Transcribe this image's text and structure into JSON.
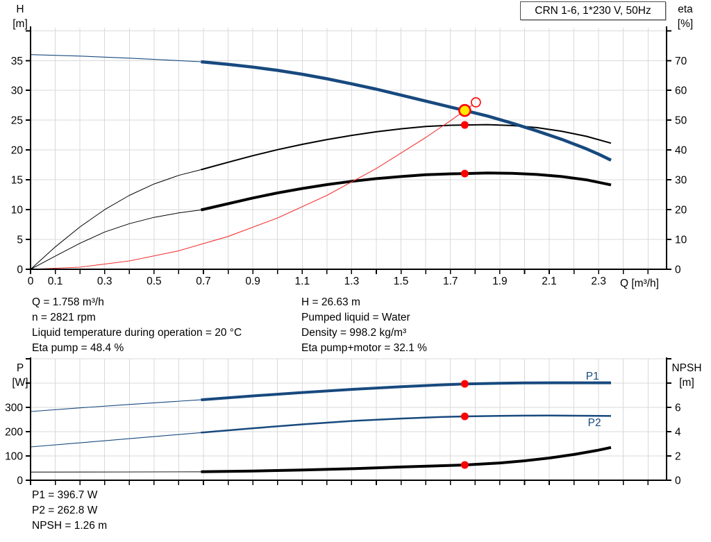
{
  "panel_title": "CRN 1-6, 1*230 V, 50Hz",
  "colors": {
    "curve_blue": "#17497E",
    "curve_black": "#000000",
    "system_red": "#F23434",
    "marker_red": "#FF0000",
    "marker_yellow": "#FFE800",
    "grid": "#D9D9D9",
    "axis": "#000000",
    "npsh_gray": "#4A4A4A",
    "label_blue": "#17497E"
  },
  "info_top_left": [
    "Q = 1.758 m³/h",
    "n = 2821 rpm",
    "Liquid temperature during operation = 20 °C",
    "Eta pump = 48.4 %"
  ],
  "info_top_right": [
    "H = 26.63 m",
    "Pumped liquid = Water",
    "Density = 998.2 kg/m³",
    "Eta pump+motor = 32.1 %"
  ],
  "info_bottom": [
    "P1 = 396.7 W",
    "P2 = 262.8 W",
    "NPSH = 1.26 m"
  ],
  "chart_data": [
    {
      "type": "line",
      "title": "CRN 1-6, 1*230 V, 50Hz",
      "x_axis": {
        "label": "Q [m³/h]",
        "min": 0,
        "max": 2.575,
        "tick_step": 0.1,
        "labeled_ticks": [
          0,
          0.1,
          0.3,
          0.5,
          0.7,
          0.9,
          1.1,
          1.3,
          1.5,
          1.7,
          1.9,
          2.1,
          2.3
        ]
      },
      "y_left": {
        "label_lines": [
          "H",
          "[m]"
        ],
        "min": 0,
        "max": 40.5,
        "tick_step": 5,
        "labeled_ticks": [
          0,
          5,
          10,
          15,
          20,
          25,
          30,
          35
        ]
      },
      "y_right": {
        "label_lines": [
          "eta",
          "[%]"
        ],
        "min": 0,
        "max": 81,
        "tick_step": 10,
        "labeled_ticks": [
          0,
          10,
          20,
          30,
          40,
          50,
          60,
          70
        ]
      },
      "series": [
        {
          "name": "qh-curve-extrapolated",
          "axis": "left",
          "color": "#17497E",
          "width": 1.1,
          "points": [
            [
              0,
              36.0
            ],
            [
              0.2,
              35.75
            ],
            [
              0.4,
              35.4
            ],
            [
              0.55,
              35.1
            ],
            [
              0.69,
              34.8
            ]
          ]
        },
        {
          "name": "eta-pump-extrapolated",
          "axis": "right",
          "color": "#000000",
          "width": 1,
          "points": [
            [
              0,
              0
            ],
            [
              0.1,
              7.5
            ],
            [
              0.2,
              14.2
            ],
            [
              0.3,
              20.0
            ],
            [
              0.4,
              24.8
            ],
            [
              0.5,
              28.6
            ],
            [
              0.6,
              31.5
            ],
            [
              0.69,
              33.4
            ]
          ]
        },
        {
          "name": "eta-pump-motor-extrapolated",
          "axis": "right",
          "color": "#000000",
          "width": 1,
          "points": [
            [
              0,
              0
            ],
            [
              0.1,
              4.4
            ],
            [
              0.2,
              8.7
            ],
            [
              0.3,
              12.5
            ],
            [
              0.4,
              15.3
            ],
            [
              0.5,
              17.4
            ],
            [
              0.6,
              18.9
            ],
            [
              0.69,
              19.9
            ]
          ]
        },
        {
          "name": "eta-pump-curve",
          "axis": "right",
          "color": "#000000",
          "width": 2,
          "points": [
            [
              0.69,
              33.4
            ],
            [
              0.8,
              35.9
            ],
            [
              0.9,
              38.1
            ],
            [
              1.0,
              40.1
            ],
            [
              1.1,
              41.9
            ],
            [
              1.2,
              43.5
            ],
            [
              1.3,
              44.9
            ],
            [
              1.4,
              46.1
            ],
            [
              1.5,
              47.1
            ],
            [
              1.6,
              47.9
            ],
            [
              1.7,
              48.3
            ],
            [
              1.758,
              48.4
            ],
            [
              1.85,
              48.5
            ],
            [
              1.95,
              48.2
            ],
            [
              2.05,
              47.5
            ],
            [
              2.15,
              46.3
            ],
            [
              2.25,
              44.6
            ],
            [
              2.35,
              42.3
            ]
          ]
        },
        {
          "name": "eta-pump-motor-curve",
          "axis": "right",
          "color": "#000000",
          "width": 4,
          "points": [
            [
              0.69,
              19.9
            ],
            [
              0.8,
              22.0
            ],
            [
              0.9,
              23.9
            ],
            [
              1.0,
              25.6
            ],
            [
              1.1,
              27.1
            ],
            [
              1.2,
              28.4
            ],
            [
              1.3,
              29.5
            ],
            [
              1.4,
              30.4
            ],
            [
              1.5,
              31.1
            ],
            [
              1.6,
              31.7
            ],
            [
              1.7,
              32.0
            ],
            [
              1.758,
              32.1
            ],
            [
              1.85,
              32.3
            ],
            [
              1.95,
              32.2
            ],
            [
              2.05,
              31.8
            ],
            [
              2.15,
              31.1
            ],
            [
              2.25,
              30.0
            ],
            [
              2.35,
              28.3
            ]
          ]
        },
        {
          "name": "qh-curve",
          "axis": "left",
          "color": "#17497E",
          "width": 4.5,
          "points": [
            [
              0.69,
              34.8
            ],
            [
              0.8,
              34.35
            ],
            [
              0.9,
              33.9
            ],
            [
              1.0,
              33.35
            ],
            [
              1.1,
              32.7
            ],
            [
              1.2,
              31.95
            ],
            [
              1.3,
              31.1
            ],
            [
              1.4,
              30.2
            ],
            [
              1.5,
              29.2
            ],
            [
              1.6,
              28.2
            ],
            [
              1.7,
              27.2
            ],
            [
              1.758,
              26.63
            ],
            [
              1.85,
              25.7
            ],
            [
              1.95,
              24.5
            ],
            [
              2.05,
              23.2
            ],
            [
              2.15,
              21.8
            ],
            [
              2.25,
              20.2
            ],
            [
              2.3,
              19.3
            ],
            [
              2.35,
              18.3
            ]
          ]
        },
        {
          "name": "system-curve",
          "axis": "left",
          "color": "#F23434",
          "width": 1.1,
          "points": [
            [
              0,
              0
            ],
            [
              0.2,
              0.35
            ],
            [
              0.4,
              1.4
            ],
            [
              0.6,
              3.1
            ],
            [
              0.8,
              5.5
            ],
            [
              1.0,
              8.6
            ],
            [
              1.2,
              12.4
            ],
            [
              1.4,
              16.9
            ],
            [
              1.6,
              22.1
            ],
            [
              1.7,
              24.9
            ],
            [
              1.758,
              26.63
            ],
            [
              1.79,
              27.6
            ]
          ]
        }
      ],
      "markers": [
        {
          "name": "duty-point",
          "axis": "left",
          "x": 1.758,
          "y": 26.63,
          "r": 8,
          "fill": "#FFE800",
          "stroke": "#FF0000",
          "stroke_width": 2.6,
          "interactable": true
        },
        {
          "name": "requested-duty-point",
          "axis": "left",
          "x": 1.803,
          "y": 28.0,
          "r": 6.5,
          "fill": "none",
          "stroke": "#FF0000",
          "stroke_width": 1.6,
          "interactable": true
        },
        {
          "name": "eta-pump-point",
          "axis": "right",
          "x": 1.758,
          "y": 48.4,
          "r": 5.5,
          "fill": "#FF0000",
          "stroke": "none",
          "stroke_width": 0,
          "interactable": false
        },
        {
          "name": "eta-pump-motor-point",
          "axis": "right",
          "x": 1.758,
          "y": 32.1,
          "r": 5.5,
          "fill": "#FF0000",
          "stroke": "none",
          "stroke_width": 0,
          "interactable": false
        }
      ],
      "annotations": []
    },
    {
      "type": "line",
      "title": "",
      "x_axis": {
        "label": "",
        "min": 0,
        "max": 2.575,
        "tick_step": 0.1,
        "labeled_ticks": []
      },
      "y_left": {
        "label_lines": [
          "P",
          "[W]"
        ],
        "min": 0,
        "max": 500,
        "tick_step": 100,
        "labeled_ticks": [
          0,
          100,
          200,
          300
        ]
      },
      "y_right": {
        "label_lines": [
          "NPSH",
          "[m]"
        ],
        "min": 0,
        "max": 10,
        "tick_step": 2,
        "labeled_ticks": [
          0,
          2,
          4,
          6
        ]
      },
      "series": [
        {
          "name": "p1-extrapolated",
          "axis": "left",
          "color": "#17497E",
          "width": 1.1,
          "points": [
            [
              0,
              283
            ],
            [
              0.2,
              298
            ],
            [
              0.4,
              312
            ],
            [
              0.55,
              322
            ],
            [
              0.69,
              331
            ]
          ]
        },
        {
          "name": "p2-extrapolated",
          "axis": "left",
          "color": "#17497E",
          "width": 1.1,
          "points": [
            [
              0,
              137
            ],
            [
              0.2,
              154
            ],
            [
              0.4,
              171
            ],
            [
              0.55,
              184
            ],
            [
              0.69,
              196
            ]
          ]
        },
        {
          "name": "npsh-extrapolated",
          "axis": "right",
          "color": "#4A4A4A",
          "width": 1.3,
          "points": [
            [
              0,
              0.67
            ],
            [
              0.35,
              0.68
            ],
            [
              0.69,
              0.7
            ]
          ]
        },
        {
          "name": "p1-curve",
          "axis": "left",
          "color": "#17497E",
          "width": 4,
          "points": [
            [
              0.69,
              331
            ],
            [
              0.9,
              347
            ],
            [
              1.1,
              361
            ],
            [
              1.3,
              374
            ],
            [
              1.5,
              385
            ],
            [
              1.65,
              392
            ],
            [
              1.758,
              396.7
            ],
            [
              1.9,
              399.5
            ],
            [
              2.0,
              400.5
            ],
            [
              2.1,
              401
            ],
            [
              2.35,
              401
            ]
          ]
        },
        {
          "name": "p2-curve",
          "axis": "left",
          "color": "#17497E",
          "width": 2.5,
          "points": [
            [
              0.69,
              196
            ],
            [
              0.9,
              214
            ],
            [
              1.1,
              230
            ],
            [
              1.3,
              244
            ],
            [
              1.5,
              254
            ],
            [
              1.65,
              260
            ],
            [
              1.758,
              262.8
            ],
            [
              1.9,
              265
            ],
            [
              2.0,
              266
            ],
            [
              2.1,
              266.5
            ],
            [
              2.35,
              264.5
            ]
          ]
        },
        {
          "name": "npsh-curve",
          "axis": "right",
          "color": "#000000",
          "width": 4,
          "points": [
            [
              0.69,
              0.7
            ],
            [
              0.9,
              0.76
            ],
            [
              1.1,
              0.84
            ],
            [
              1.3,
              0.95
            ],
            [
              1.5,
              1.09
            ],
            [
              1.65,
              1.19
            ],
            [
              1.758,
              1.26
            ],
            [
              1.9,
              1.42
            ],
            [
              2.0,
              1.6
            ],
            [
              2.1,
              1.83
            ],
            [
              2.2,
              2.12
            ],
            [
              2.3,
              2.48
            ],
            [
              2.35,
              2.7
            ]
          ]
        }
      ],
      "markers": [
        {
          "name": "p1-point",
          "axis": "left",
          "x": 1.758,
          "y": 396.7,
          "r": 5.5,
          "fill": "#FF0000",
          "stroke": "none",
          "stroke_width": 0,
          "interactable": false
        },
        {
          "name": "p2-point",
          "axis": "left",
          "x": 1.758,
          "y": 262.8,
          "r": 5.5,
          "fill": "#FF0000",
          "stroke": "none",
          "stroke_width": 0,
          "interactable": false
        },
        {
          "name": "npsh-point",
          "axis": "right",
          "x": 1.758,
          "y": 1.26,
          "r": 5.5,
          "fill": "#FF0000",
          "stroke": "none",
          "stroke_width": 0,
          "interactable": false
        }
      ],
      "annotations": [
        {
          "text": "P1",
          "axis": "left",
          "x": 2.275,
          "y": 429,
          "color": "#17497E"
        },
        {
          "text": "P2",
          "axis": "left",
          "x": 2.283,
          "y": 237,
          "color": "#17497E"
        }
      ]
    }
  ]
}
